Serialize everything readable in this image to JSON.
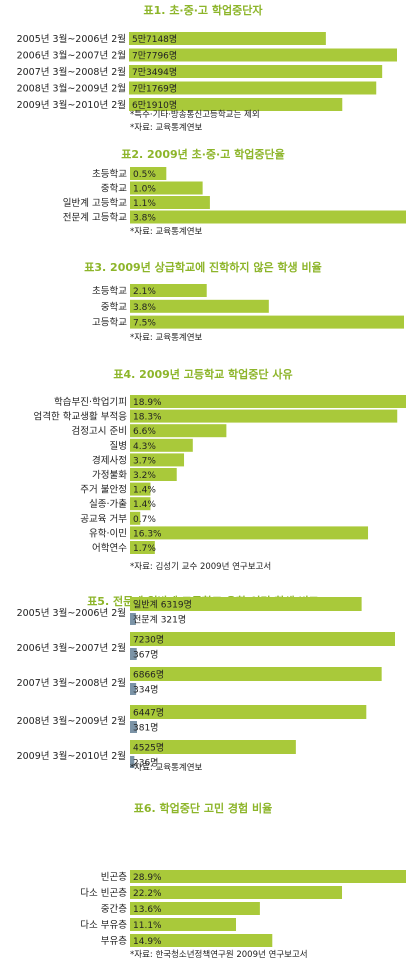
{
  "colors": {
    "bar": "#a9c93a",
    "bar_secondary": "#7b93a6",
    "title": "#8db52a",
    "text": "#222222"
  },
  "chart_data": [
    {
      "type": "bar",
      "title": "표1. 초·중·고 학업중단자",
      "categories": [
        "2005년 3월~2006년 2월",
        "2006년 3월~2007년 2월",
        "2007년 3월~2008년 2월",
        "2008년 3월~2009년 2월",
        "2009년 3월~2010년 2월"
      ],
      "values": [
        57148,
        77796,
        73494,
        71769,
        61910
      ],
      "value_labels": [
        "5만7148명",
        "7만7796명",
        "7만3494명",
        "7만1769명",
        "6만1910명"
      ],
      "notes": [
        "*특수·기타·방송통신고등학교는 제외",
        "*자료: 교육통계연보"
      ]
    },
    {
      "type": "bar",
      "title": "표2. 2009년 초·중·고 학업중단율",
      "categories": [
        "초등학교",
        "중학교",
        "일반계 고등학교",
        "전문계 고등학교"
      ],
      "values": [
        0.5,
        1.0,
        1.1,
        3.8
      ],
      "value_labels": [
        "0.5%",
        "1.0%",
        "1.1%",
        "3.8%"
      ],
      "notes": [
        "*자료: 교육통계연보"
      ]
    },
    {
      "type": "bar",
      "title": "표3. 2009년 상급학교에 진학하지 않은 학생 비율",
      "categories": [
        "초등학교",
        "중학교",
        "고등학교"
      ],
      "values": [
        2.1,
        3.8,
        7.5
      ],
      "value_labels": [
        "2.1%",
        "3.8%",
        "7.5%"
      ],
      "notes": [
        "*자료: 교육통계연보"
      ]
    },
    {
      "type": "bar",
      "title": "표4. 2009년 고등학교 학업중단 사유",
      "categories": [
        "학습부진·학업기피",
        "엄격한 학교생활 부적응",
        "검정고시 준비",
        "질병",
        "경제사정",
        "가정불화",
        "주거 불안정",
        "실종·가출",
        "공교육 거부",
        "유학·이민",
        "어학연수"
      ],
      "values": [
        18.9,
        18.3,
        6.6,
        4.3,
        3.7,
        3.2,
        1.4,
        1.4,
        0.7,
        16.3,
        1.7
      ],
      "value_labels": [
        "18.9%",
        "18.3%",
        "6.6%",
        "4.3%",
        "3.7%",
        "3.2%",
        "1.4%",
        "1.4%",
        "0.7%",
        "16.3%",
        "1.7%"
      ],
      "notes": [
        "*자료: 김성기 교수 2009년 연구보고서"
      ]
    },
    {
      "type": "bar",
      "title": "표5. 전문계·일반계 고등학교 유학·이민 학생 비교",
      "categories": [
        "2005년 3월~2006년 2월",
        "2006년 3월~2007년 2월",
        "2007년 3월~2008년 2월",
        "2008년 3월~2009년 2월",
        "2009년 3월~2010년 2월"
      ],
      "series": [
        {
          "name": "일반계",
          "values": [
            6319,
            7230,
            6866,
            6447,
            4525
          ],
          "value_labels": [
            "일반계 6319명",
            "7230명",
            "6866명",
            "6447명",
            "4525명"
          ]
        },
        {
          "name": "전문계",
          "values": [
            321,
            367,
            334,
            381,
            236
          ],
          "value_labels": [
            "전문계 321명",
            "367명",
            "334명",
            "381명",
            "236명"
          ]
        }
      ],
      "notes": [
        "*자료: 교육통계연보"
      ]
    },
    {
      "type": "bar",
      "title": "표6. 학업중단 고민 경험 비율",
      "categories": [
        "빈곤층",
        "다소 빈곤층",
        "중간층",
        "다소 부유층",
        "부유층"
      ],
      "values": [
        28.9,
        22.2,
        13.6,
        11.1,
        14.9
      ],
      "value_labels": [
        "28.9%",
        "22.2%",
        "13.6%",
        "11.1%",
        "14.9%"
      ],
      "notes": [
        "*자료: 한국청소년정책연구원 2009년 연구보고서"
      ]
    }
  ]
}
